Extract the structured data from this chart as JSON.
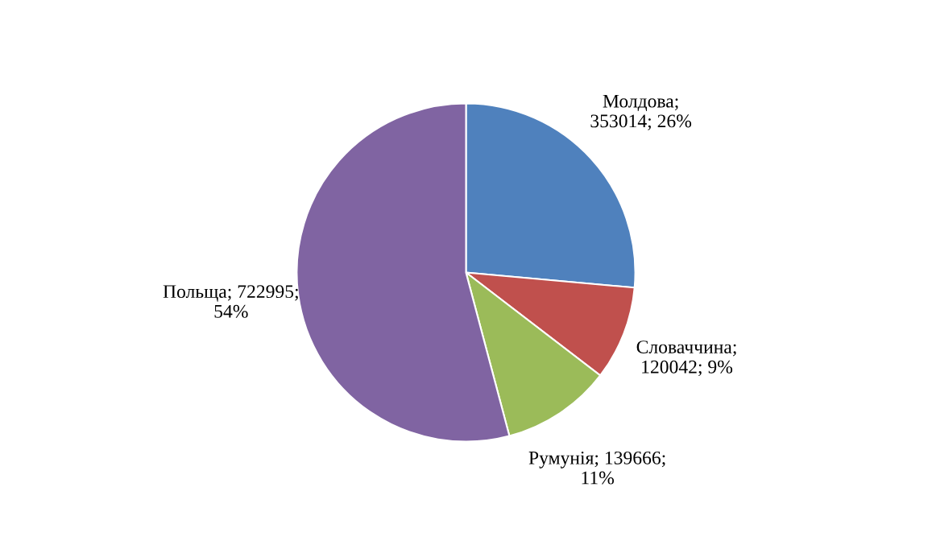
{
  "chart_data": {
    "type": "pie",
    "categories": [
      "Молдова",
      "Словаччина",
      "Румунія",
      "Польща"
    ],
    "values": [
      353014,
      120042,
      139666,
      722995
    ],
    "colors": [
      "#4f81bd",
      "#c0504d",
      "#9bbb59",
      "#8064a2"
    ],
    "value_labels": [
      ";\n353014; 26%",
      ";\n120042; 9%",
      "; 139666;\n11%",
      "; 722995;\n54%"
    ]
  }
}
